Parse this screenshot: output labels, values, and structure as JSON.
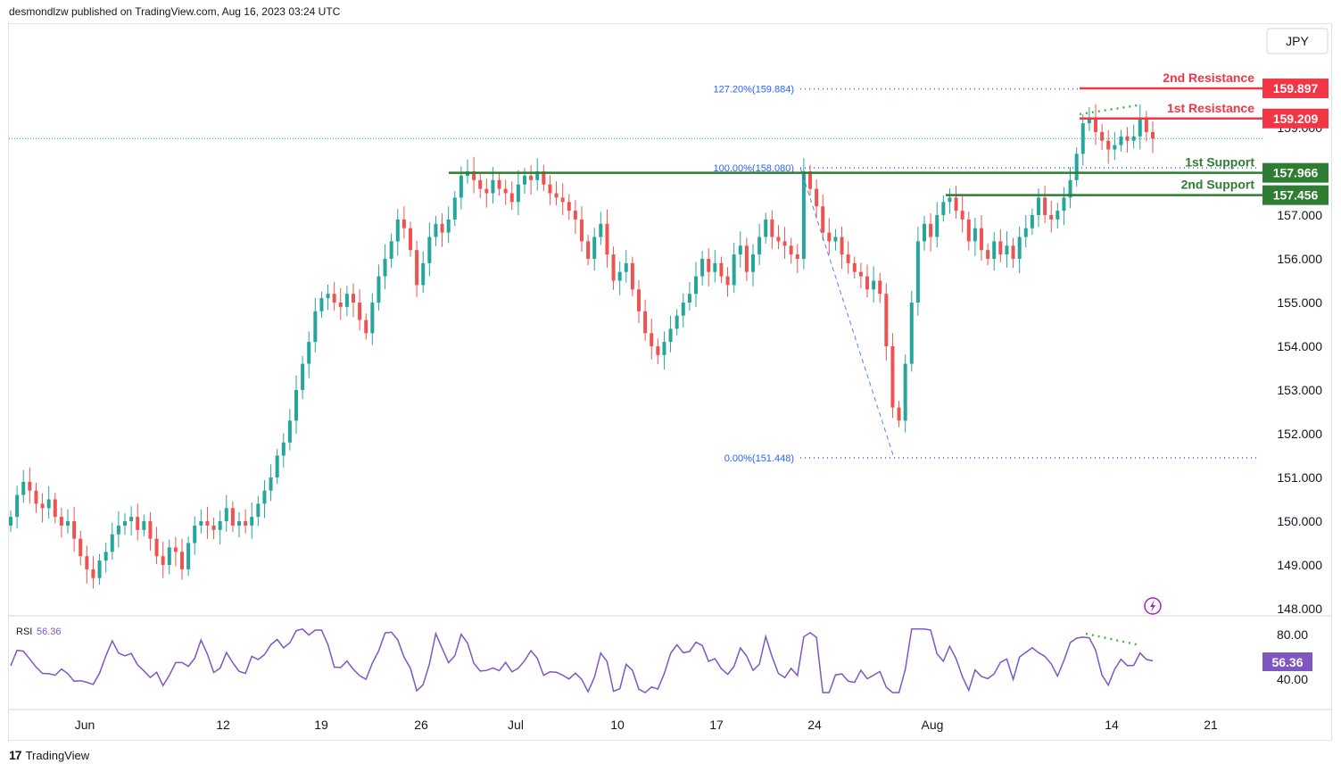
{
  "header": {
    "text": "desmondlzw published on TradingView.com, Aug 16, 2023 03:24 UTC"
  },
  "footer": {
    "logo_text": "TradingView"
  },
  "chart_data": {
    "type": "candlestick",
    "currency_label": "JPY",
    "x_ticks": [
      "Jun",
      "12",
      "19",
      "26",
      "Jul",
      "10",
      "17",
      "24",
      "Aug",
      "14",
      "21"
    ],
    "y_ticks": [
      "159.000",
      "157.000",
      "156.000",
      "155.000",
      "154.000",
      "153.000",
      "152.000",
      "151.000",
      "150.000",
      "149.000",
      "148.000"
    ],
    "y_range": [
      147.5,
      161.0
    ],
    "levels": [
      {
        "label": "2nd Resistance",
        "value": 159.897,
        "value_text": "159.897",
        "color": "#f23645"
      },
      {
        "label": "1st Resistance",
        "value": 159.209,
        "value_text": "159.209",
        "color": "#f23645"
      },
      {
        "label": "1st Support",
        "value": 157.966,
        "value_text": "157.966",
        "color": "#2e7d32"
      },
      {
        "label": "2nd Support",
        "value": 157.456,
        "value_text": "157.456",
        "color": "#2e7d32"
      }
    ],
    "fib_levels": [
      {
        "label": "127.20%(159.884)",
        "value": 159.884
      },
      {
        "label": "100.00%(158.080)",
        "value": 158.08
      },
      {
        "label": "0.00%(151.448)",
        "value": 151.448
      }
    ],
    "last_price": 158.75,
    "rsi": {
      "label": "RSI",
      "value_text": "56.36",
      "y_ticks": [
        "80.00",
        "40.00"
      ],
      "color": "#7e57c2"
    },
    "closes": [
      150.1,
      150.6,
      150.9,
      150.7,
      150.4,
      150.3,
      150.5,
      150.1,
      149.9,
      150.0,
      149.6,
      149.2,
      148.9,
      148.7,
      149.1,
      149.3,
      149.7,
      149.9,
      150.0,
      150.1,
      149.8,
      150.0,
      149.6,
      149.2,
      149.0,
      149.4,
      149.3,
      148.9,
      149.5,
      149.9,
      150.0,
      149.9,
      149.8,
      150.0,
      150.3,
      149.9,
      150.0,
      149.9,
      150.1,
      150.4,
      150.7,
      151.0,
      151.5,
      151.8,
      152.3,
      153.0,
      153.6,
      154.1,
      154.8,
      155.1,
      155.2,
      155.0,
      154.9,
      155.2,
      155.0,
      154.6,
      154.3,
      155.0,
      155.6,
      156.0,
      156.4,
      156.9,
      156.7,
      156.2,
      155.4,
      155.9,
      156.5,
      156.8,
      156.6,
      156.9,
      157.4,
      157.9,
      158.0,
      157.8,
      157.6,
      157.5,
      157.8,
      157.6,
      157.5,
      157.3,
      157.7,
      157.9,
      157.8,
      158.0,
      157.7,
      157.5,
      157.4,
      157.3,
      157.1,
      156.9,
      156.4,
      156.0,
      156.5,
      156.8,
      156.1,
      155.5,
      155.7,
      155.9,
      155.3,
      154.8,
      154.3,
      154.0,
      153.8,
      154.1,
      154.4,
      154.7,
      155.0,
      155.2,
      155.6,
      156.0,
      155.7,
      155.9,
      155.6,
      155.4,
      156.1,
      156.3,
      155.7,
      156.1,
      156.5,
      156.9,
      156.5,
      156.4,
      156.3,
      156.1,
      156.0,
      158.0,
      157.6,
      157.2,
      156.6,
      156.4,
      156.5,
      156.1,
      155.9,
      155.7,
      155.6,
      155.3,
      155.5,
      155.2,
      154.0,
      152.6,
      152.3,
      153.6,
      155.0,
      156.4,
      156.8,
      156.5,
      157.0,
      157.3,
      157.4,
      157.1,
      156.9,
      156.4,
      156.7,
      156.2,
      156.0,
      156.4,
      156.1,
      156.3,
      156.0,
      156.5,
      156.7,
      157.0,
      157.4,
      157.0,
      156.9,
      157.1,
      157.4,
      157.8,
      158.4,
      159.1,
      159.2,
      158.9,
      158.7,
      158.5,
      158.6,
      158.8,
      158.7,
      158.8,
      159.2,
      158.9,
      158.75
    ]
  }
}
